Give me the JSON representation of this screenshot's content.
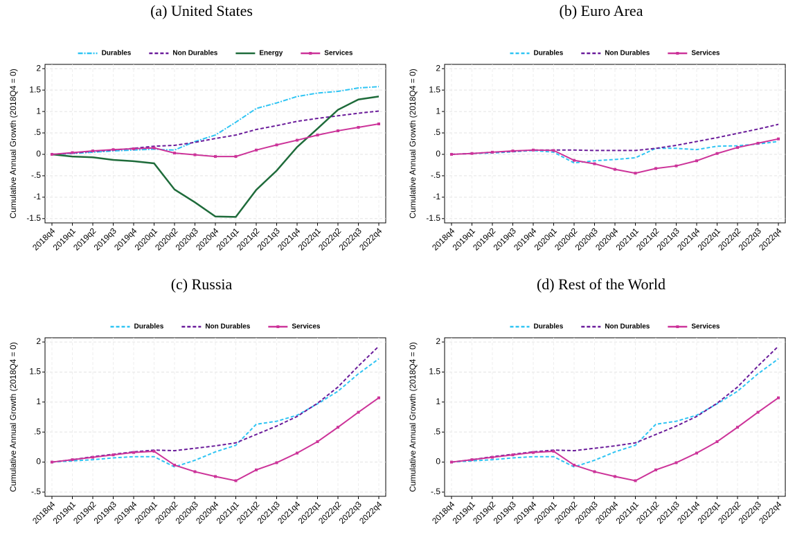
{
  "chart_data": [
    {
      "type": "line",
      "title": "(a) United States",
      "ylabel": "Cumulative Annual Growth (2018Q4 = 0)",
      "categories": [
        "2018q4",
        "2019q1",
        "2019q2",
        "2019q3",
        "2019q4",
        "2020q1",
        "2020q2",
        "2020q3",
        "2020q4",
        "2021q1",
        "2021q2",
        "2021q3",
        "2021q4",
        "2022q1",
        "2022q2",
        "2022q3",
        "2022q4"
      ],
      "ylim": [
        -1.6,
        2.1
      ],
      "yticks": [
        -1.5,
        {
          "value": -1,
          "label": "-1"
        },
        {
          "value": -0.5,
          "label": "-.5"
        },
        0,
        {
          "value": 0.5,
          "label": ".5"
        },
        1,
        1.5,
        2
      ],
      "grid": true,
      "legend": "top",
      "series": [
        {
          "name": "Durables",
          "color": "#2ec4f3",
          "style": "dashdot",
          "values": [
            0,
            0.02,
            0.05,
            0.08,
            0.1,
            0.12,
            0.1,
            0.3,
            0.45,
            0.75,
            1.07,
            1.2,
            1.35,
            1.43,
            1.47,
            1.55,
            1.58
          ]
        },
        {
          "name": "Non Durables",
          "color": "#6a1b9a",
          "style": "dash",
          "values": [
            0,
            0.03,
            0.07,
            0.1,
            0.14,
            0.19,
            0.21,
            0.28,
            0.37,
            0.45,
            0.58,
            0.67,
            0.77,
            0.84,
            0.9,
            0.96,
            1.01
          ]
        },
        {
          "name": "Energy",
          "color": "#1e6b3a",
          "style": "solid",
          "values": [
            0,
            -0.05,
            -0.07,
            -0.13,
            -0.16,
            -0.21,
            -0.82,
            -1.12,
            -1.45,
            -1.46,
            -0.83,
            -0.38,
            0.17,
            0.6,
            1.04,
            1.28,
            1.35
          ]
        },
        {
          "name": "Services",
          "color": "#cc3399",
          "style": "solid",
          "marker": true,
          "values": [
            0,
            0.04,
            0.08,
            0.11,
            0.13,
            0.15,
            0.03,
            -0.01,
            -0.05,
            -0.05,
            0.1,
            0.22,
            0.33,
            0.45,
            0.55,
            0.63,
            0.71
          ]
        }
      ]
    },
    {
      "type": "line",
      "title": "(b) Euro Area",
      "ylabel": "Cumulative Annual Growth (2018Q4 = 0)",
      "categories": [
        "2018q4",
        "2019q1",
        "2019q2",
        "2019q3",
        "2019q4",
        "2020q1",
        "2020q2",
        "2020q3",
        "2020q4",
        "2021q1",
        "2021q2",
        "2021q3",
        "2021q4",
        "2022q1",
        "2022q2",
        "2022q3",
        "2022q4"
      ],
      "ylim": [
        -1.6,
        2.1
      ],
      "yticks": [
        -1.5,
        {
          "value": -1,
          "label": "-1"
        },
        {
          "value": -0.5,
          "label": "-.5"
        },
        0,
        {
          "value": 0.5,
          "label": ".5"
        },
        1,
        1.5,
        2
      ],
      "grid": true,
      "legend": "top",
      "series": [
        {
          "name": "Durables",
          "color": "#2ec4f3",
          "style": "dash",
          "values": [
            0,
            0.02,
            0.03,
            0.06,
            0.09,
            0.05,
            -0.2,
            -0.15,
            -0.12,
            -0.08,
            0.14,
            0.14,
            0.11,
            0.19,
            0.2,
            0.24,
            0.3
          ]
        },
        {
          "name": "Non Durables",
          "color": "#6a1b9a",
          "style": "dash",
          "values": [
            0,
            0.02,
            0.05,
            0.07,
            0.1,
            0.1,
            0.1,
            0.09,
            0.09,
            0.09,
            0.14,
            0.21,
            0.3,
            0.39,
            0.49,
            0.59,
            0.7
          ]
        },
        {
          "name": "Services",
          "color": "#cc3399",
          "style": "solid",
          "marker": true,
          "values": [
            0,
            0.02,
            0.05,
            0.08,
            0.1,
            0.09,
            -0.14,
            -0.22,
            -0.35,
            -0.44,
            -0.33,
            -0.27,
            -0.15,
            0.02,
            0.16,
            0.26,
            0.36
          ]
        }
      ]
    },
    {
      "type": "line",
      "title": "(c) Russia",
      "ylabel": "Cumulative Annual Growth (2018Q4 = 0)",
      "categories": [
        "2018q4",
        "2019q1",
        "2019q2",
        "2019q3",
        "2019q4",
        "2020q1",
        "2020q2",
        "2020q3",
        "2020q4",
        "2021q1",
        "2021q2",
        "2021q3",
        "2021q4",
        "2022q1",
        "2022q2",
        "2022q3",
        "2022q4"
      ],
      "ylim": [
        -0.57,
        2.07
      ],
      "yticks": [
        {
          "value": -0.5,
          "label": "-.5"
        },
        0,
        {
          "value": 0.5,
          "label": ".5"
        },
        1,
        1.5,
        2
      ],
      "grid": true,
      "legend": "top",
      "series": [
        {
          "name": "Durables",
          "color": "#2ec4f3",
          "style": "dash",
          "values": [
            0,
            0.02,
            0.04,
            0.07,
            0.09,
            0.09,
            -0.08,
            0.03,
            0.17,
            0.28,
            0.63,
            0.68,
            0.78,
            0.97,
            1.18,
            1.47,
            1.72
          ]
        },
        {
          "name": "Non Durables",
          "color": "#6a1b9a",
          "style": "dash",
          "values": [
            0,
            0.04,
            0.09,
            0.13,
            0.17,
            0.2,
            0.19,
            0.23,
            0.27,
            0.32,
            0.46,
            0.6,
            0.76,
            0.98,
            1.25,
            1.6,
            1.93
          ]
        },
        {
          "name": "Services",
          "color": "#cc3399",
          "style": "solid",
          "marker": true,
          "values": [
            0,
            0.04,
            0.08,
            0.12,
            0.16,
            0.18,
            -0.05,
            -0.16,
            -0.24,
            -0.31,
            -0.13,
            -0.01,
            0.15,
            0.34,
            0.58,
            0.83,
            1.07
          ]
        }
      ]
    },
    {
      "type": "line",
      "title": "(d) Rest of the World",
      "ylabel": "Cumulative Annual Growth (2018Q4 = 0)",
      "categories": [
        "2018q4",
        "2019q1",
        "2019q2",
        "2019q3",
        "2019q4",
        "2020q1",
        "2020q2",
        "2020q3",
        "2020q4",
        "2021q1",
        "2021q2",
        "2021q3",
        "2021q4",
        "2022q1",
        "2022q2",
        "2022q3",
        "2022q4"
      ],
      "ylim": [
        -0.57,
        2.07
      ],
      "yticks": [
        {
          "value": -0.5,
          "label": "-.5"
        },
        0,
        {
          "value": 0.5,
          "label": ".5"
        },
        1,
        1.5,
        2
      ],
      "grid": true,
      "legend": "top",
      "series": [
        {
          "name": "Durables",
          "color": "#2ec4f3",
          "style": "dash",
          "values": [
            0,
            0.02,
            0.04,
            0.07,
            0.09,
            0.09,
            -0.08,
            0.03,
            0.17,
            0.28,
            0.63,
            0.68,
            0.78,
            0.97,
            1.18,
            1.47,
            1.72
          ]
        },
        {
          "name": "Non Durables",
          "color": "#6a1b9a",
          "style": "dash",
          "values": [
            0,
            0.04,
            0.09,
            0.13,
            0.17,
            0.2,
            0.19,
            0.23,
            0.27,
            0.32,
            0.46,
            0.6,
            0.76,
            0.98,
            1.25,
            1.6,
            1.93
          ]
        },
        {
          "name": "Services",
          "color": "#cc3399",
          "style": "solid",
          "marker": true,
          "values": [
            0,
            0.04,
            0.08,
            0.12,
            0.16,
            0.18,
            -0.05,
            -0.16,
            -0.24,
            -0.31,
            -0.13,
            -0.01,
            0.15,
            0.34,
            0.58,
            0.83,
            1.07
          ]
        }
      ]
    }
  ]
}
